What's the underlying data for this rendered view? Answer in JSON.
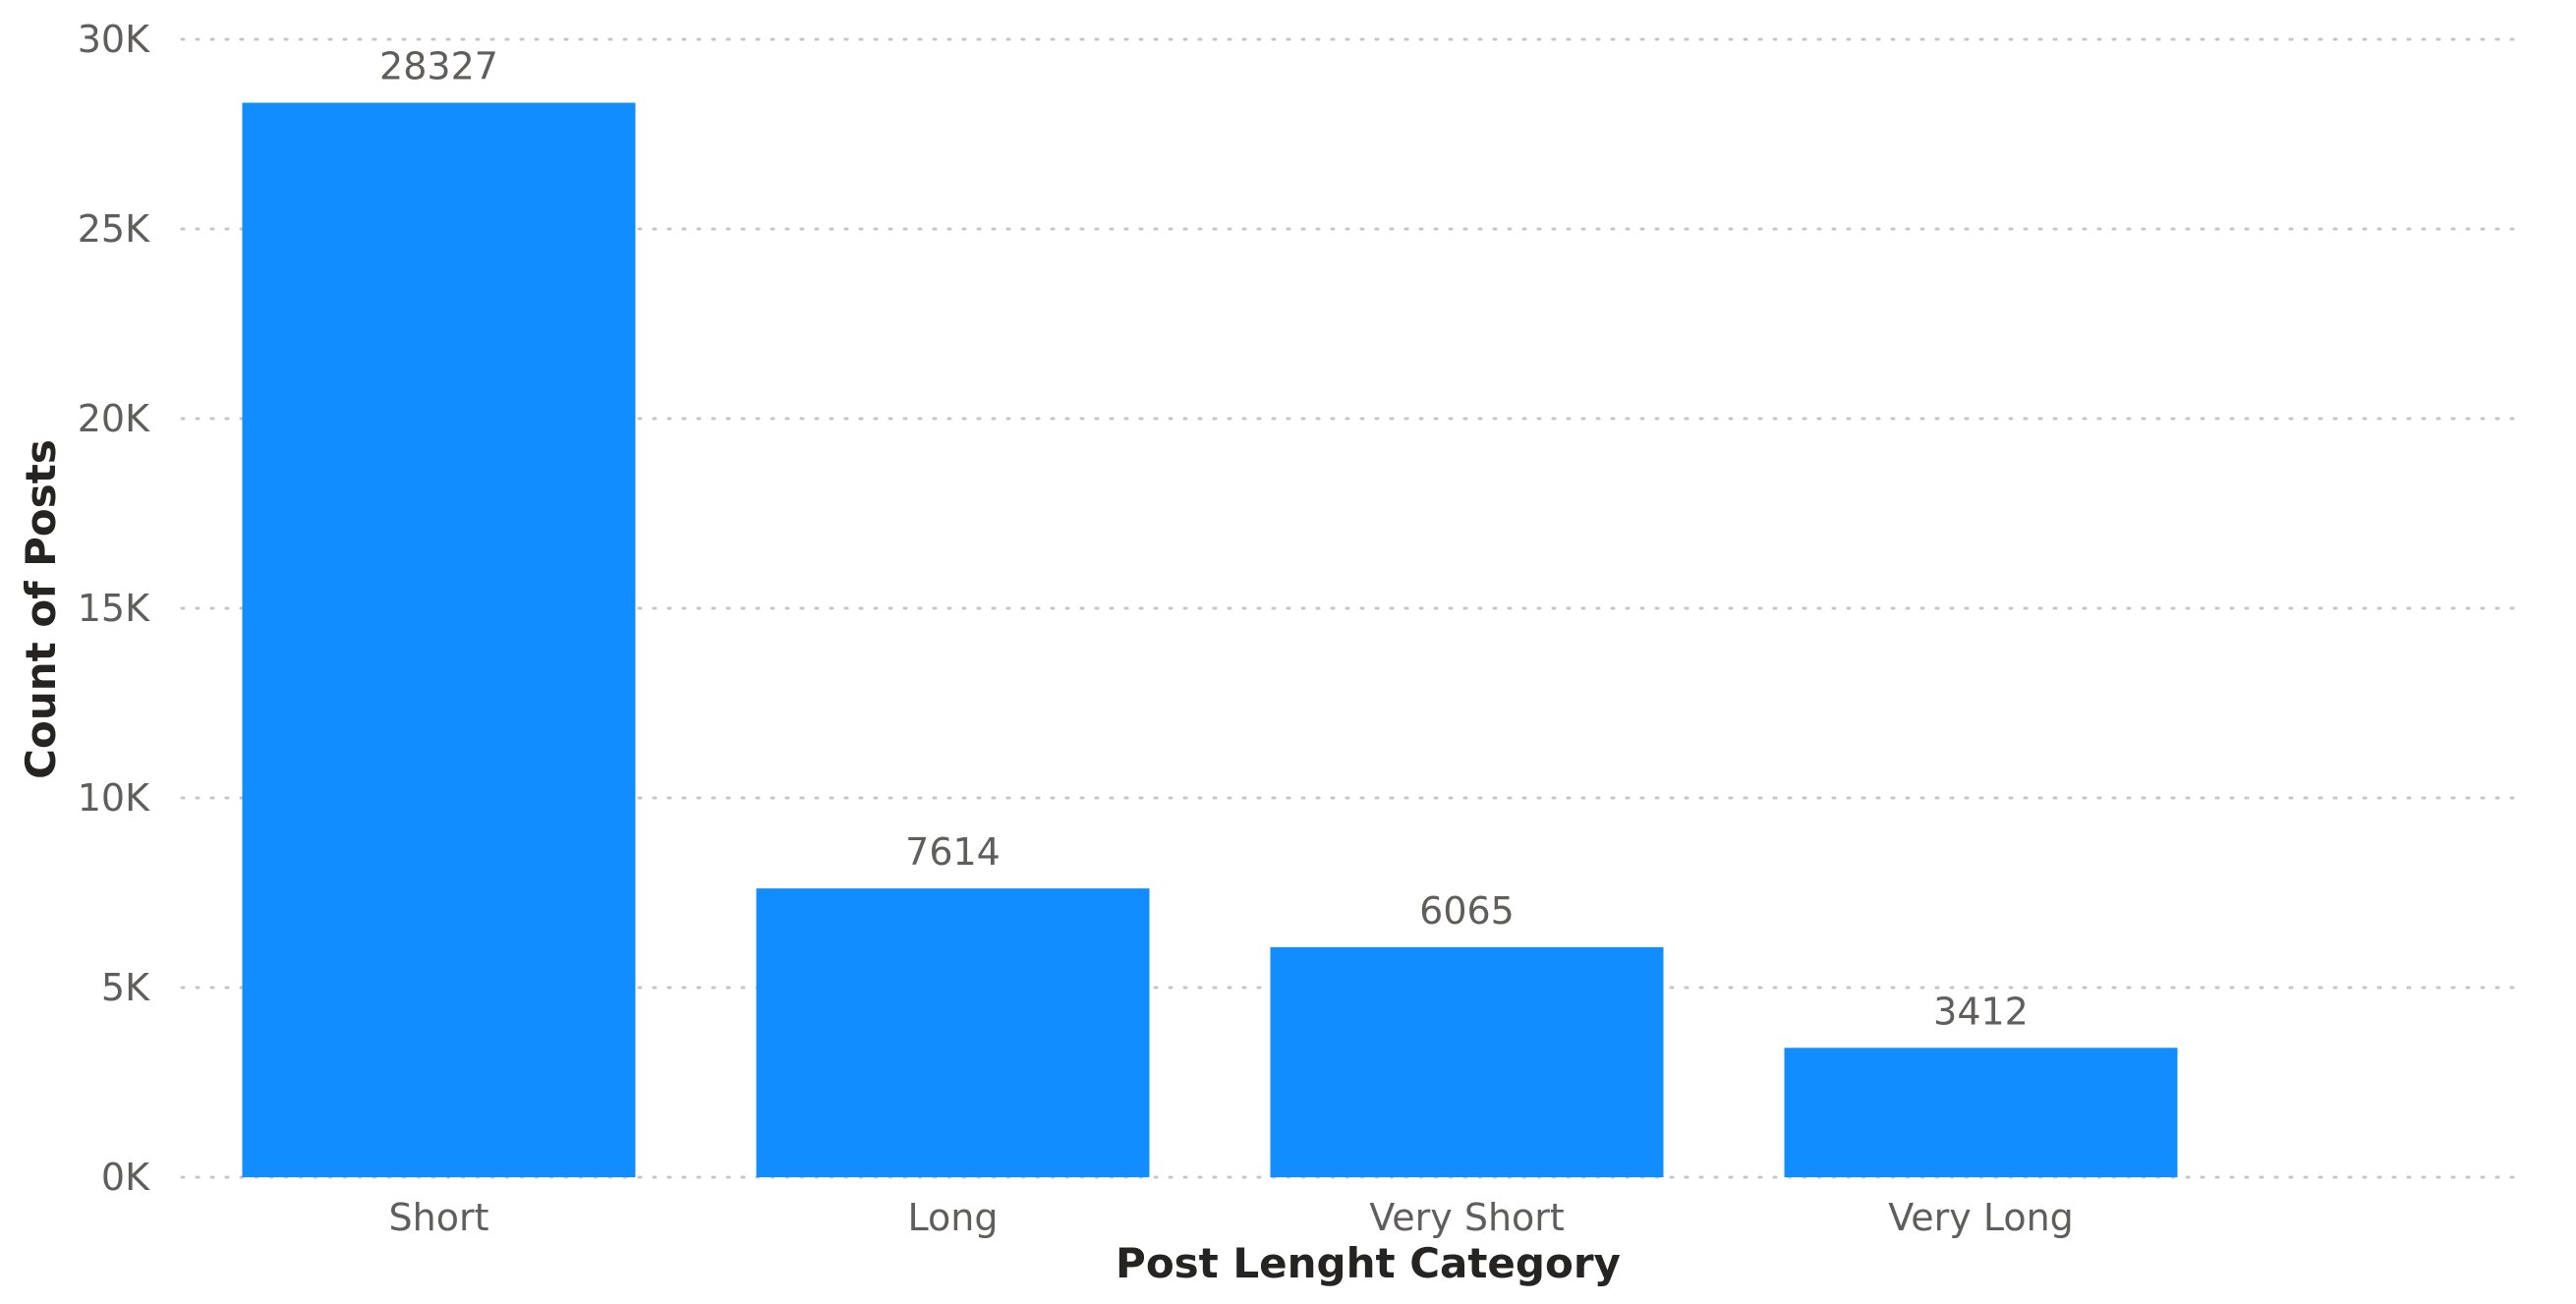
{
  "chart_data": {
    "type": "bar",
    "categories": [
      "Short",
      "Long",
      "Very Short",
      "Very Long"
    ],
    "values": [
      28327,
      7614,
      6065,
      3412
    ],
    "data_labels": [
      "28327",
      "7614",
      "6065",
      "3412"
    ],
    "xlabel": "Post Lenght Category",
    "ylabel": "Count of Posts",
    "ylim": [
      0,
      30000
    ],
    "yticks": [
      0,
      5000,
      10000,
      15000,
      20000,
      25000,
      30000
    ],
    "ytick_labels": [
      "0K",
      "5K",
      "10K",
      "15K",
      "20K",
      "25K",
      "30K"
    ],
    "grid": true,
    "grid_style": "dotted",
    "legend": "none",
    "bar_color": "#118dff"
  }
}
